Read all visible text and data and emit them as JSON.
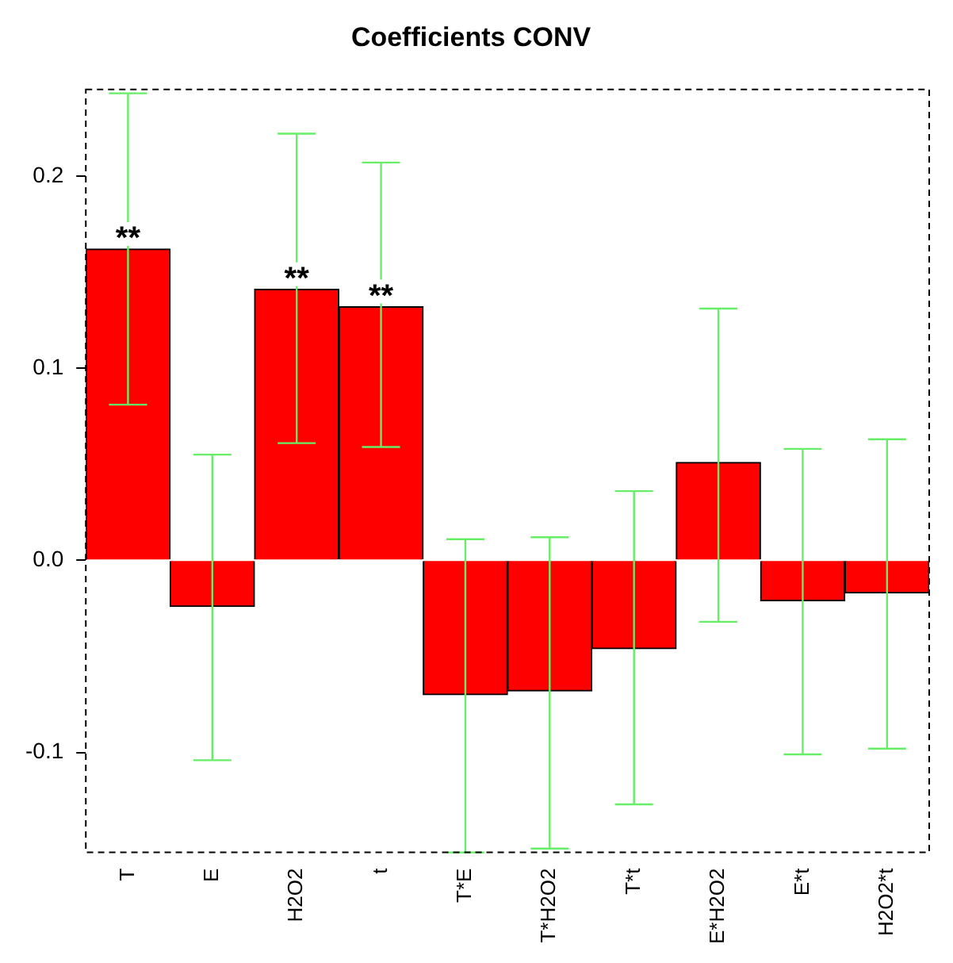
{
  "chart_data": {
    "type": "bar",
    "title": "Coefficients CONV",
    "categories": [
      "T",
      "E",
      "H2O2",
      "t",
      "T*E",
      "T*H2O2",
      "T*t",
      "E*H2O2",
      "E*t",
      "H2O2*t"
    ],
    "series": [
      {
        "color": "#ff0000",
        "values": [
          0.162,
          -0.024,
          0.141,
          0.132,
          -0.07,
          -0.068,
          -0.046,
          0.051,
          -0.021,
          -0.017
        ],
        "errors": [
          [
            0.081,
            0.243
          ],
          [
            -0.104,
            0.055
          ],
          [
            0.061,
            0.222
          ],
          [
            0.059,
            0.207
          ],
          [
            -0.152,
            0.011
          ],
          [
            -0.15,
            0.012
          ],
          [
            -0.127,
            0.036
          ],
          [
            -0.032,
            0.131
          ],
          [
            -0.101,
            0.058
          ],
          [
            -0.098,
            0.063
          ]
        ]
      }
    ],
    "annotations": [
      {
        "text": "**",
        "x": "T",
        "y": 0.162
      },
      {
        "text": "**",
        "x": "H2O2",
        "y": 0.141
      },
      {
        "text": "**",
        "x": "t",
        "y": 0.132
      }
    ],
    "ylim": [
      -0.152,
      0.245
    ],
    "yticks": [
      {
        "value": -0.1,
        "label": "-0.1"
      },
      {
        "value": 0,
        "label": "0.0"
      },
      {
        "value": 0.1,
        "label": "0.1"
      },
      {
        "value": 0.2,
        "label": "0.2"
      }
    ],
    "grid": false,
    "legend": false
  }
}
